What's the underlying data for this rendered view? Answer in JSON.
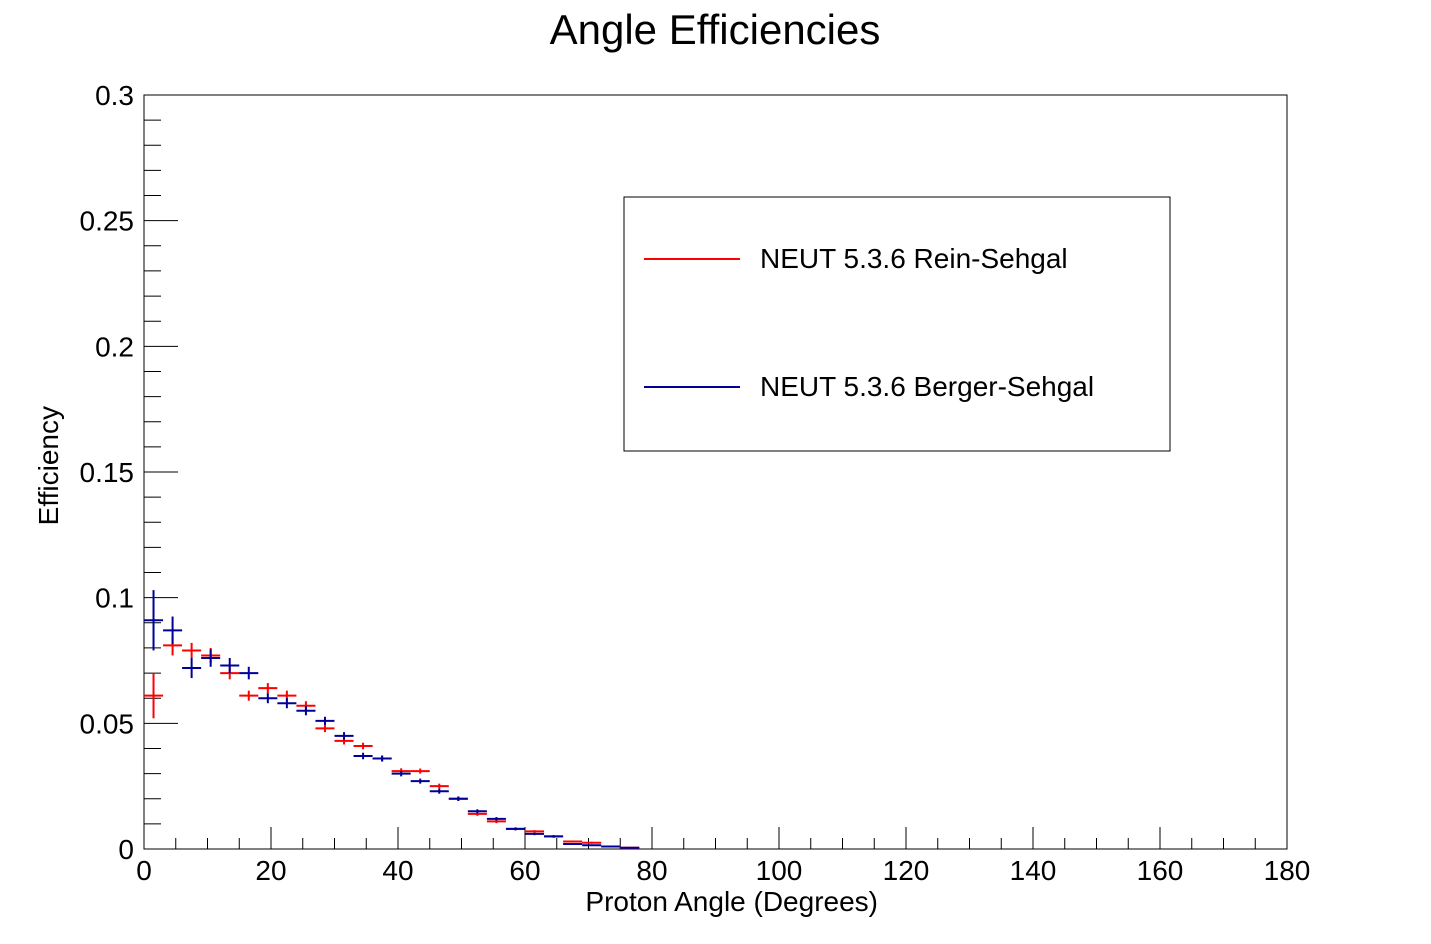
{
  "chart_data": {
    "type": "scatter",
    "title": "Angle Efficiencies",
    "xlabel": "Proton Angle (Degrees)",
    "ylabel": "Efficiency",
    "xlim": [
      0,
      180
    ],
    "ylim": [
      0,
      0.3
    ],
    "xticks": [
      "0",
      "20",
      "40",
      "60",
      "80",
      "100",
      "120",
      "140",
      "160",
      "180"
    ],
    "yticks": [
      "0",
      "0.05",
      "0.1",
      "0.15",
      "0.2",
      "0.25",
      "0.3"
    ],
    "bin_width": 3,
    "grid": false,
    "legend_position": "top-right",
    "series": [
      {
        "name": "NEUT 5.3.6 Rein-Sehgal",
        "color": "#ff0000",
        "x": [
          1.5,
          4.5,
          7.5,
          10.5,
          13.5,
          16.5,
          19.5,
          22.5,
          25.5,
          28.5,
          31.5,
          34.5,
          37.5,
          40.5,
          43.5,
          46.5,
          49.5,
          52.5,
          55.5,
          58.5,
          61.5,
          64.5,
          67.5,
          70.5,
          73.5,
          76.5
        ],
        "y": [
          0.061,
          0.081,
          0.079,
          0.077,
          0.07,
          0.061,
          0.064,
          0.061,
          0.057,
          0.048,
          0.043,
          0.041,
          0.036,
          0.031,
          0.031,
          0.025,
          0.02,
          0.014,
          0.011,
          0.008,
          0.007,
          0.005,
          0.003,
          0.0025,
          0.001,
          0.0005
        ],
        "yerr": [
          0.009,
          0.004,
          0.003,
          0.003,
          0.0025,
          0.002,
          0.002,
          0.002,
          0.0018,
          0.0015,
          0.0014,
          0.0013,
          0.0012,
          0.0011,
          0.001,
          0.001,
          0.0009,
          0.0008,
          0.0007,
          0.0006,
          0.0005,
          0.0005,
          0.0004,
          0.0004,
          0.0003,
          0.0002
        ]
      },
      {
        "name": "NEUT 5.3.6 Berger-Sehgal",
        "color": "#000099",
        "x": [
          1.5,
          4.5,
          7.5,
          10.5,
          13.5,
          16.5,
          19.5,
          22.5,
          25.5,
          28.5,
          31.5,
          34.5,
          37.5,
          40.5,
          43.5,
          46.5,
          49.5,
          52.5,
          55.5,
          58.5,
          61.5,
          64.5,
          67.5,
          70.5,
          73.5,
          76.5
        ],
        "y": [
          0.091,
          0.087,
          0.072,
          0.076,
          0.073,
          0.07,
          0.06,
          0.058,
          0.055,
          0.051,
          0.045,
          0.037,
          0.036,
          0.03,
          0.027,
          0.023,
          0.02,
          0.015,
          0.012,
          0.008,
          0.006,
          0.005,
          0.002,
          0.0015,
          0.001,
          0.0005
        ],
        "yerr": [
          0.012,
          0.0055,
          0.004,
          0.0035,
          0.003,
          0.0025,
          0.002,
          0.002,
          0.0018,
          0.0016,
          0.0015,
          0.0013,
          0.0012,
          0.0011,
          0.001,
          0.001,
          0.0009,
          0.0008,
          0.0007,
          0.0006,
          0.0005,
          0.0005,
          0.0004,
          0.0003,
          0.0003,
          0.0002
        ]
      }
    ]
  }
}
